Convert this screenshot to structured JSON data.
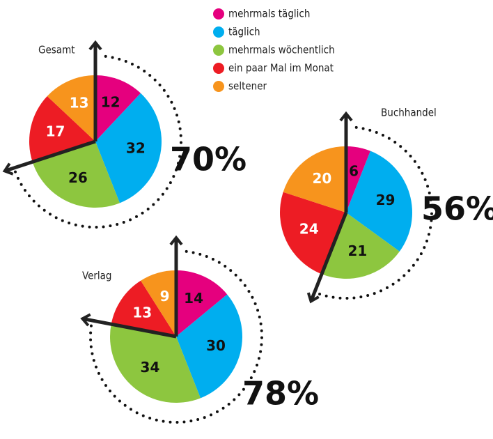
{
  "chart_data": {
    "type": "pie",
    "categories": [
      "mehrmals täglich",
      "täglich",
      "mehrmals wöchentlich",
      "ein paar Mal im Monat",
      "seltener"
    ],
    "colors": [
      "#e5007e",
      "#00aeef",
      "#8dc63f",
      "#ed1c24",
      "#f7941d"
    ],
    "series": [
      {
        "name": "Gesamt",
        "values": [
          12,
          32,
          26,
          17,
          13
        ],
        "annotation": "70%"
      },
      {
        "name": "Buchhandel",
        "values": [
          6,
          29,
          21,
          24,
          20
        ],
        "annotation": "56%"
      },
      {
        "name": "Verlag",
        "values": [
          14,
          30,
          34,
          13,
          9
        ],
        "annotation": "78%"
      }
    ]
  }
}
